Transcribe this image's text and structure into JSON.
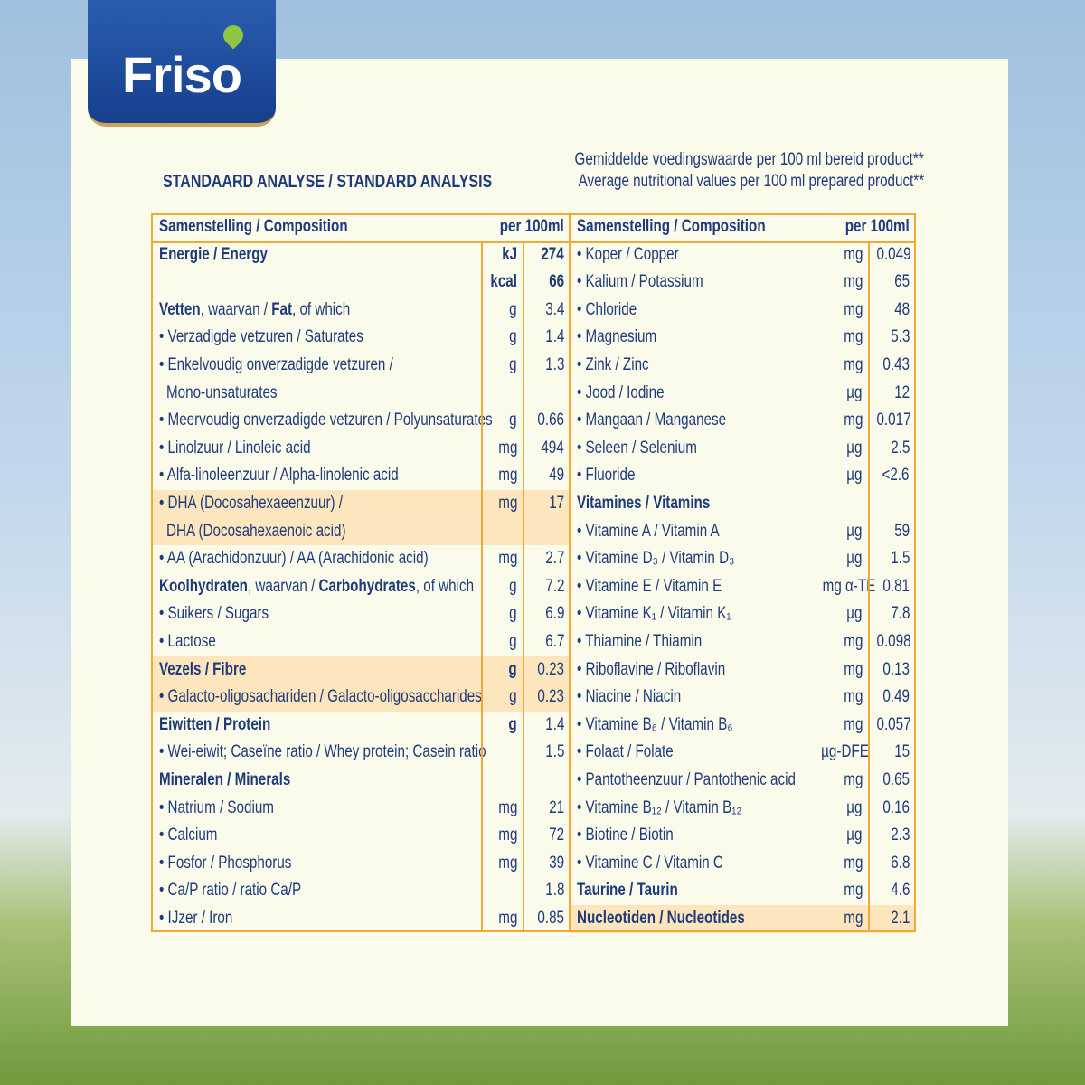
{
  "logo": "Friso",
  "header": {
    "title": "STANDAARD ANALYSE / STANDARD ANALYSIS",
    "note": [
      "Gemiddelde voedingswaarde per 100 ml bereid product**",
      "Average nutritional values per 100 ml prepared product**"
    ]
  },
  "table": {
    "left": {
      "header": {
        "label": "Samenstelling / Composition",
        "unit": "per 100ml"
      },
      "rows": [
        {
          "label": "Energie / Energy",
          "bold": true,
          "units": [
            "kJ",
            "kcal"
          ],
          "values": [
            274,
            66
          ]
        },
        {
          "parts": [
            {
              "text": "Vetten",
              "bold": true
            },
            {
              "text": ", waarvan / "
            },
            {
              "text": "Fat",
              "bold": true
            },
            {
              "text": ", of which"
            }
          ],
          "unit": "g",
          "value": 3.4
        },
        {
          "label": "• Verzadigde vetzuren / Saturates",
          "unit": "g",
          "value": 1.4
        },
        {
          "lines": [
            "• Enkelvoudig onverzadigde vetzuren /",
            "Mono-unsaturates"
          ],
          "unit": "g",
          "value": 1.3
        },
        {
          "label": "• Meervoudig onverzadigde vetzuren / Polyunsaturates",
          "unit": "g",
          "value": 0.66
        },
        {
          "label": "• Linolzuur / Linoleic acid",
          "unit": "mg",
          "value": 494
        },
        {
          "label": "• Alfa-linoleenzuur / Alpha-linolenic acid",
          "unit": "mg",
          "value": 49
        },
        {
          "lines": [
            "• DHA (Docosahexaeenzuur) /",
            "DHA (Docosahexaenoic acid)"
          ],
          "unit": "mg",
          "value": 17,
          "highlight": true
        },
        {
          "label": "• AA (Arachidonzuur) / AA (Arachidonic acid)",
          "unit": "mg",
          "value": 2.7
        },
        {
          "parts": [
            {
              "text": "Koolhydraten",
              "bold": true
            },
            {
              "text": ", waarvan / "
            },
            {
              "text": "Carbohydrates",
              "bold": true
            },
            {
              "text": ", of which"
            }
          ],
          "unit": "g",
          "value": 7.2
        },
        {
          "label": "• Suikers / Sugars",
          "unit": "g",
          "value": 6.9
        },
        {
          "label": "• Lactose",
          "unit": "g",
          "value": 6.7
        },
        {
          "label": "Vezels / Fibre",
          "bold": true,
          "unit": "g",
          "value": 0.23,
          "highlight": true
        },
        {
          "label": "• Galacto-oligosachariden / Galacto-oligosaccharides",
          "unit": "g",
          "value": 0.23,
          "highlight": true
        },
        {
          "label": "Eiwitten / Protein",
          "bold": true,
          "unit": "g",
          "value": 1.4
        },
        {
          "label": "• Wei-eiwit; Caseïne ratio / Whey protein; Casein ratio",
          "value": 1.5
        },
        {
          "label": "Mineralen / Minerals",
          "bold": true
        },
        {
          "label": "• Natrium / Sodium",
          "unit": "mg",
          "value": 21
        },
        {
          "label": "• Calcium",
          "unit": "mg",
          "value": 72
        },
        {
          "label": "• Fosfor / Phosphorus",
          "unit": "mg",
          "value": 39
        },
        {
          "label": "• Ca/P ratio / ratio Ca/P",
          "value": 1.8
        },
        {
          "label": "• IJzer / Iron",
          "unit": "mg",
          "value": 0.85
        }
      ]
    },
    "right": {
      "header": {
        "label": "Samenstelling / Composition",
        "unit": "per 100ml"
      },
      "rows": [
        {
          "label": "• Koper / Copper",
          "unit": "mg",
          "value": 0.049
        },
        {
          "label": "• Kalium / Potassium",
          "unit": "mg",
          "value": 65
        },
        {
          "label": "• Chloride",
          "unit": "mg",
          "value": 48
        },
        {
          "label": "• Magnesium",
          "unit": "mg",
          "value": 5.3
        },
        {
          "label": "• Zink / Zinc",
          "unit": "mg",
          "value": 0.43
        },
        {
          "label": "• Jood / Iodine",
          "unit": "µg",
          "value": 12
        },
        {
          "label": "• Mangaan / Manganese",
          "unit": "mg",
          "value": 0.017
        },
        {
          "label": "• Seleen / Selenium",
          "unit": "µg",
          "value": 2.5
        },
        {
          "label": "• Fluoride",
          "unit": "µg",
          "value": "<2.6"
        },
        {
          "label": "Vitamines / Vitamins",
          "bold": true
        },
        {
          "label": "• Vitamine A / Vitamin A",
          "unit": "µg",
          "value": 59
        },
        {
          "label": "• Vitamine D₃ / Vitamin D₃",
          "unit": "µg",
          "value": 1.5
        },
        {
          "label": "• Vitamine E / Vitamin E",
          "unit": "mg α-TE",
          "value": 0.81
        },
        {
          "label": "• Vitamine K₁ / Vitamin K₁",
          "unit": "µg",
          "value": 7.8
        },
        {
          "label": "• Thiamine / Thiamin",
          "unit": "mg",
          "value": 0.098
        },
        {
          "label": "• Riboflavine / Riboflavin",
          "unit": "mg",
          "value": 0.13
        },
        {
          "label": "• Niacine / Niacin",
          "unit": "mg",
          "value": 0.49
        },
        {
          "label": "• Vitamine B₆ / Vitamin B₆",
          "unit": "mg",
          "value": 0.057
        },
        {
          "label": "• Folaat / Folate",
          "unit": "µg-DFE",
          "value": 15
        },
        {
          "label": "• Pantotheenzuur / Pantothenic acid",
          "unit": "mg",
          "value": 0.65
        },
        {
          "label": "• Vitamine B₁₂ / Vitamin B₁₂",
          "unit": "µg",
          "value": 0.16
        },
        {
          "label": "• Biotine / Biotin",
          "unit": "µg",
          "value": 2.3
        },
        {
          "label": "• Vitamine C / Vitamin C",
          "unit": "mg",
          "value": 6.8
        },
        {
          "label": "Taurine / Taurin",
          "bold": true,
          "unit": "mg",
          "value": 4.6
        },
        {
          "label": "Nucleotiden / Nucleotides",
          "bold": true,
          "unit": "mg",
          "value": 2.1,
          "highlight": true
        }
      ]
    }
  }
}
